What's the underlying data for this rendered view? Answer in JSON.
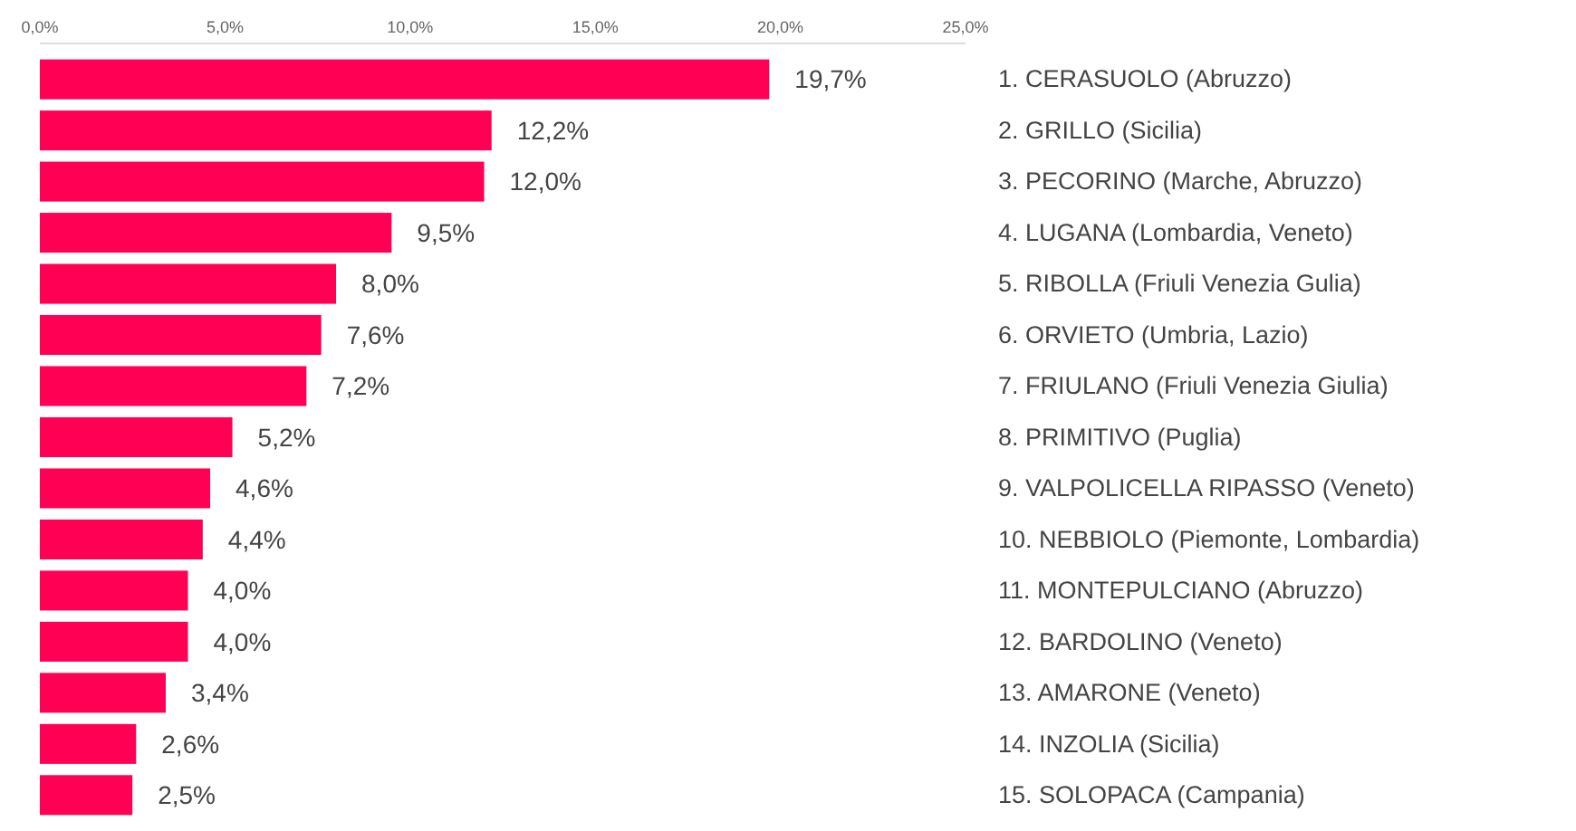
{
  "chart_data": {
    "type": "bar",
    "orientation": "horizontal",
    "categories": [
      "1. CERASUOLO (Abruzzo)",
      "2. GRILLO (Sicilia)",
      "3. PECORINO (Marche, Abruzzo)",
      "4. LUGANA (Lombardia, Veneto)",
      "5. RIBOLLA (Friuli Venezia Gulia)",
      "6. ORVIETO (Umbria, Lazio)",
      "7. FRIULANO (Friuli Venezia Giulia)",
      "8. PRIMITIVO (Puglia)",
      "9. VALPOLICELLA RIPASSO (Veneto)",
      "10. NEBBIOLO (Piemonte, Lombardia)",
      "11. MONTEPULCIANO (Abruzzo)",
      "12. BARDOLINO (Veneto)",
      "13. AMARONE (Veneto)",
      "14. INZOLIA (Sicilia)",
      "15. SOLOPACA (Campania)"
    ],
    "values": [
      19.7,
      12.2,
      12.0,
      9.5,
      8.0,
      7.6,
      7.2,
      5.2,
      4.6,
      4.4,
      4.0,
      4.0,
      3.4,
      2.6,
      2.5
    ],
    "value_labels": [
      "19,7%",
      "12,2%",
      "12,0%",
      "9,5%",
      "8,0%",
      "7,6%",
      "7,2%",
      "5,2%",
      "4,6%",
      "4,4%",
      "4,0%",
      "4,0%",
      "3,4%",
      "2,6%",
      "2,5%"
    ],
    "color": "#ff0055",
    "xlim": [
      0,
      25
    ],
    "xticks": [
      {
        "value": 0,
        "label": "0,0%"
      },
      {
        "value": 5,
        "label": "5,0%"
      },
      {
        "value": 10,
        "label": "10,0%"
      },
      {
        "value": 15,
        "label": "15,0%"
      },
      {
        "value": 20,
        "label": "20,0%"
      },
      {
        "value": 25,
        "label": "25,0%"
      }
    ],
    "grid": false
  }
}
